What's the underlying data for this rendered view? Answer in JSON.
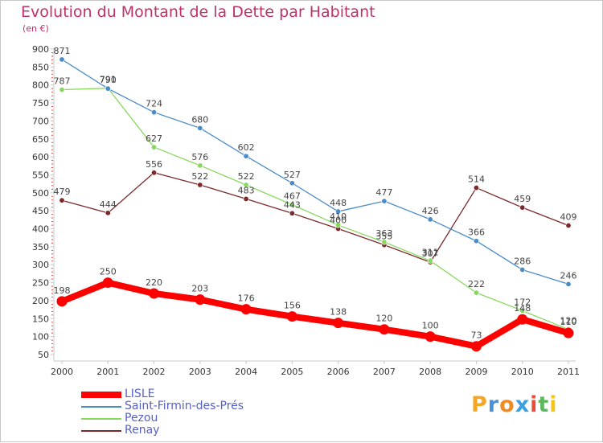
{
  "header": {
    "title": "Evolution du Montant de la Dette par Habitant",
    "unit": "(en €)"
  },
  "logo": {
    "letters": [
      "P",
      "r",
      "o",
      "x",
      "i",
      "t",
      "i"
    ],
    "colors": [
      "#f5a623",
      "#4a90d9",
      "#f08a24",
      "#3aa0e0",
      "#e94e3c",
      "#5cb85c",
      "#f5c518"
    ]
  },
  "chart_data": {
    "type": "line",
    "title": "Evolution du Montant de la Dette par Habitant",
    "ylabel": "(en €)",
    "x": [
      "2000",
      "2001",
      "2002",
      "2003",
      "2004",
      "2005",
      "2006",
      "2007",
      "2008",
      "2009",
      "2010",
      "2011"
    ],
    "ylim": [
      50,
      900
    ],
    "yticks": [
      50,
      100,
      150,
      200,
      250,
      300,
      350,
      400,
      450,
      500,
      550,
      600,
      650,
      700,
      750,
      800,
      850,
      900
    ],
    "grid": false,
    "legend": "bottom-left",
    "series": [
      {
        "name": "LISLE",
        "color": "#ff0000",
        "values": [
          198,
          250,
          220,
          203,
          176,
          156,
          138,
          120,
          100,
          73,
          148,
          110
        ],
        "labels": [
          "198",
          "250",
          "220",
          "203",
          "176",
          "156",
          "138",
          "120",
          "100",
          "73",
          "148",
          "110"
        ]
      },
      {
        "name": "Saint-Firmin-des-Prés",
        "color": "#4a8cc8",
        "values": [
          871,
          790,
          724,
          680,
          602,
          527,
          448,
          477,
          426,
          366,
          286,
          246
        ],
        "labels": [
          "871",
          "790",
          "724",
          "680",
          "602",
          "527",
          "448",
          "477",
          "426",
          "366",
          "286",
          "246"
        ]
      },
      {
        "name": "Pezou",
        "color": "#88d860",
        "values": [
          787,
          791,
          627,
          576,
          522,
          467,
          410,
          363,
          311,
          222,
          172,
          120
        ],
        "labels": [
          "787",
          "791",
          "627",
          "576",
          "522",
          "467",
          "410",
          "363",
          "311",
          "222",
          "172",
          "120"
        ]
      },
      {
        "name": "Renay",
        "color": "#7a2a2a",
        "values": [
          479,
          444,
          556,
          522,
          483,
          443,
          400,
          355,
          307,
          514,
          459,
          409
        ],
        "labels": [
          "479",
          "444",
          "556",
          "522",
          "483",
          "443",
          "400",
          "355",
          "307",
          "514",
          "459",
          "409"
        ]
      }
    ]
  }
}
